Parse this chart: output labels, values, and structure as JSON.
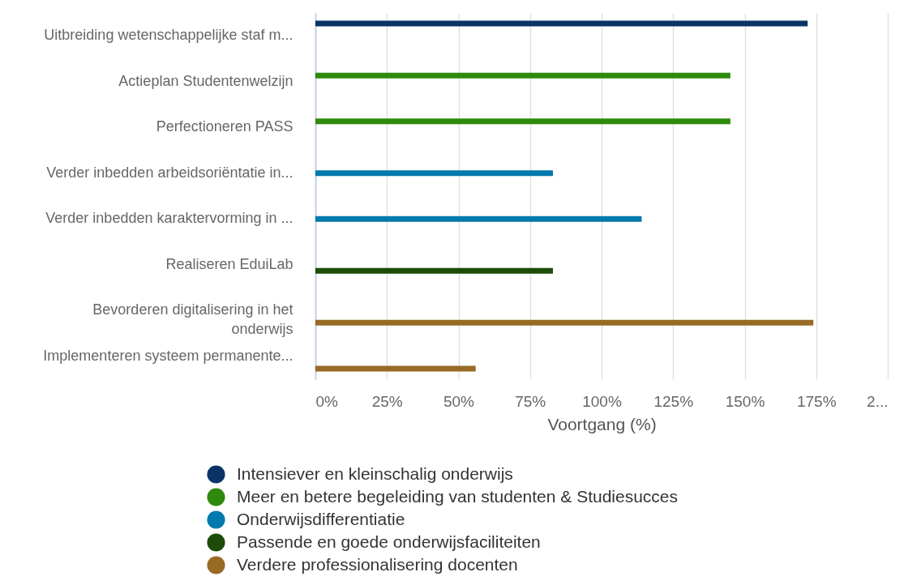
{
  "chart_data": {
    "type": "bar",
    "orientation": "horizontal",
    "categories": [
      "Uitbreiding wetenschappelijke staf m...",
      "Actieplan Studentenwelzijn",
      "Perfectioneren PASS",
      "Verder inbedden arbeidsoriëntatie in...",
      "Verder inbedden karaktervorming in ...",
      "Realiseren EduiLab",
      "Bevorderen digitalisering in het onderwijs",
      "Implementeren systeem permanente..."
    ],
    "series": [
      {
        "name": "Intensiever en kleinschalig onderwijs",
        "color": "#0b3466",
        "values": [
          172,
          null,
          null,
          null,
          null,
          null,
          null,
          null
        ]
      },
      {
        "name": "Meer en betere begeleiding van studenten & Studiesucces",
        "color": "#2e8a0c",
        "values": [
          null,
          145,
          145,
          null,
          null,
          null,
          null,
          null
        ]
      },
      {
        "name": "Onderwijsdifferentiatie",
        "color": "#0079ad",
        "values": [
          null,
          null,
          null,
          83,
          114,
          null,
          null,
          null
        ]
      },
      {
        "name": "Passende en goede onderwijsfaciliteiten",
        "color": "#1c4c07",
        "values": [
          null,
          null,
          null,
          null,
          null,
          83,
          null,
          null
        ]
      },
      {
        "name": "Verdere professionalisering docenten",
        "color": "#986b24",
        "values": [
          null,
          null,
          null,
          null,
          null,
          null,
          174,
          56
        ]
      }
    ],
    "xlabel": "Voortgang (%)",
    "xlim": [
      0,
      200
    ],
    "xticks": [
      {
        "value": 0,
        "label": "0%"
      },
      {
        "value": 25,
        "label": "25%"
      },
      {
        "value": 50,
        "label": "50%"
      },
      {
        "value": 75,
        "label": "75%"
      },
      {
        "value": 100,
        "label": "100%"
      },
      {
        "value": 125,
        "label": "125%"
      },
      {
        "value": 150,
        "label": "150%"
      },
      {
        "value": 175,
        "label": "175%"
      },
      {
        "value": 200,
        "label": "2..."
      }
    ],
    "grid": "x",
    "legend": "bottom"
  }
}
